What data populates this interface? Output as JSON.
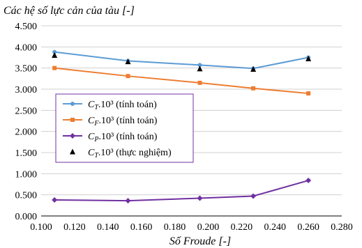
{
  "chart_data": {
    "type": "line",
    "title": "Các hệ số lực cản của tàu [-]",
    "xlabel": "Số Froude [-]",
    "ylabel": "",
    "xlim": [
      0.1,
      0.28
    ],
    "ylim": [
      0,
      4.5
    ],
    "x_ticks": [
      "0.100",
      "0.120",
      "0.140",
      "0.160",
      "0.180",
      "0.200",
      "0.220",
      "0.240",
      "0.260",
      "0.280"
    ],
    "y_ticks": [
      "0.000",
      "0.500",
      "1.000",
      "1.500",
      "2.000",
      "2.500",
      "3.000",
      "3.500",
      "4.000",
      "4.500"
    ],
    "grid": "horizontal",
    "legend_position": "left-middle",
    "series": [
      {
        "name": "CT.10³ (tính toán)",
        "name_symbol": "C",
        "name_sub": "T",
        "name_rest": ".10³ (tính toán)",
        "color": "#5b9bd5",
        "marker": "circle",
        "line": true,
        "x": [
          0.108,
          0.152,
          0.195,
          0.227,
          0.26
        ],
        "y": [
          3.88,
          3.67,
          3.57,
          3.49,
          3.75
        ]
      },
      {
        "name": "CF.10³ (tính toán)",
        "name_symbol": "C",
        "name_sub": "F",
        "name_rest": ".10³ (tính toán)",
        "color": "#ed7d31",
        "marker": "square",
        "line": true,
        "x": [
          0.108,
          0.152,
          0.195,
          0.227,
          0.26
        ],
        "y": [
          3.5,
          3.31,
          3.15,
          3.02,
          2.9
        ]
      },
      {
        "name": "CP.10³ (tính toán)",
        "name_symbol": "C",
        "name_sub": "P",
        "name_rest": ".10³ (tính toán)",
        "color": "#7030a0",
        "marker": "diamond",
        "line": true,
        "x": [
          0.108,
          0.152,
          0.195,
          0.227,
          0.26
        ],
        "y": [
          0.38,
          0.36,
          0.42,
          0.47,
          0.84
        ]
      },
      {
        "name": "CT.10³ (thực nghiệm)",
        "name_symbol": "C",
        "name_sub": "T",
        "name_rest": ".10³ (thực nghiệm)",
        "color": "#000000",
        "marker": "triangle",
        "line": false,
        "x": [
          0.108,
          0.152,
          0.195,
          0.227,
          0.26
        ],
        "y": [
          3.8,
          3.65,
          3.48,
          3.47,
          3.72
        ]
      }
    ]
  }
}
